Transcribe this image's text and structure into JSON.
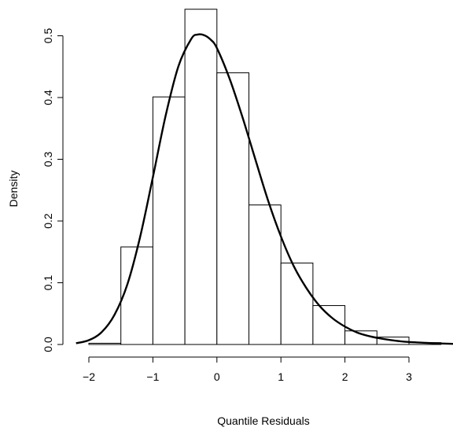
{
  "chart_data": {
    "type": "bar",
    "subtype": "histogram-with-density-curve",
    "title": "",
    "xlabel": "Quantile Residuals",
    "ylabel": "Density",
    "xlim": [
      -2.2,
      3.7
    ],
    "ylim": [
      0,
      0.55
    ],
    "x_ticks": [
      -2,
      -1,
      0,
      1,
      2,
      3
    ],
    "y_ticks": [
      0.0,
      0.1,
      0.2,
      0.3,
      0.4,
      0.5
    ],
    "x_tick_labels": [
      "−2",
      "−1",
      "0",
      "1",
      "2",
      "3"
    ],
    "y_tick_labels": [
      "0.0",
      "0.1",
      "0.2",
      "0.3",
      "0.4",
      "0.5"
    ],
    "bins": [
      {
        "x0": -2.0,
        "x1": -1.5,
        "density": 0.002
      },
      {
        "x0": -1.5,
        "x1": -1.0,
        "density": 0.158
      },
      {
        "x0": -1.0,
        "x1": -0.5,
        "density": 0.401
      },
      {
        "x0": -0.5,
        "x1": 0.0,
        "density": 0.543
      },
      {
        "x0": 0.0,
        "x1": 0.5,
        "density": 0.44
      },
      {
        "x0": 0.5,
        "x1": 1.0,
        "density": 0.226
      },
      {
        "x0": 1.0,
        "x1": 1.5,
        "density": 0.132
      },
      {
        "x0": 1.5,
        "x1": 2.0,
        "density": 0.063
      },
      {
        "x0": 2.0,
        "x1": 2.5,
        "density": 0.022
      },
      {
        "x0": 2.5,
        "x1": 3.0,
        "density": 0.012
      },
      {
        "x0": 3.0,
        "x1": 3.5,
        "density": 0.003
      }
    ],
    "density_curve": {
      "x": [
        -2.2,
        -2.0,
        -1.8,
        -1.6,
        -1.4,
        -1.2,
        -1.0,
        -0.8,
        -0.6,
        -0.4,
        -0.3,
        -0.2,
        -0.1,
        0.0,
        0.2,
        0.4,
        0.6,
        0.8,
        1.0,
        1.2,
        1.4,
        1.6,
        1.8,
        2.0,
        2.2,
        2.4,
        2.6,
        2.8,
        3.0,
        3.2,
        3.4,
        3.7
      ],
      "y": [
        0.002,
        0.007,
        0.02,
        0.048,
        0.097,
        0.174,
        0.271,
        0.371,
        0.451,
        0.495,
        0.502,
        0.501,
        0.494,
        0.48,
        0.43,
        0.368,
        0.3,
        0.233,
        0.175,
        0.127,
        0.091,
        0.063,
        0.043,
        0.029,
        0.019,
        0.013,
        0.009,
        0.006,
        0.004,
        0.003,
        0.002,
        0.001
      ]
    },
    "grid": false,
    "legend": "none"
  }
}
